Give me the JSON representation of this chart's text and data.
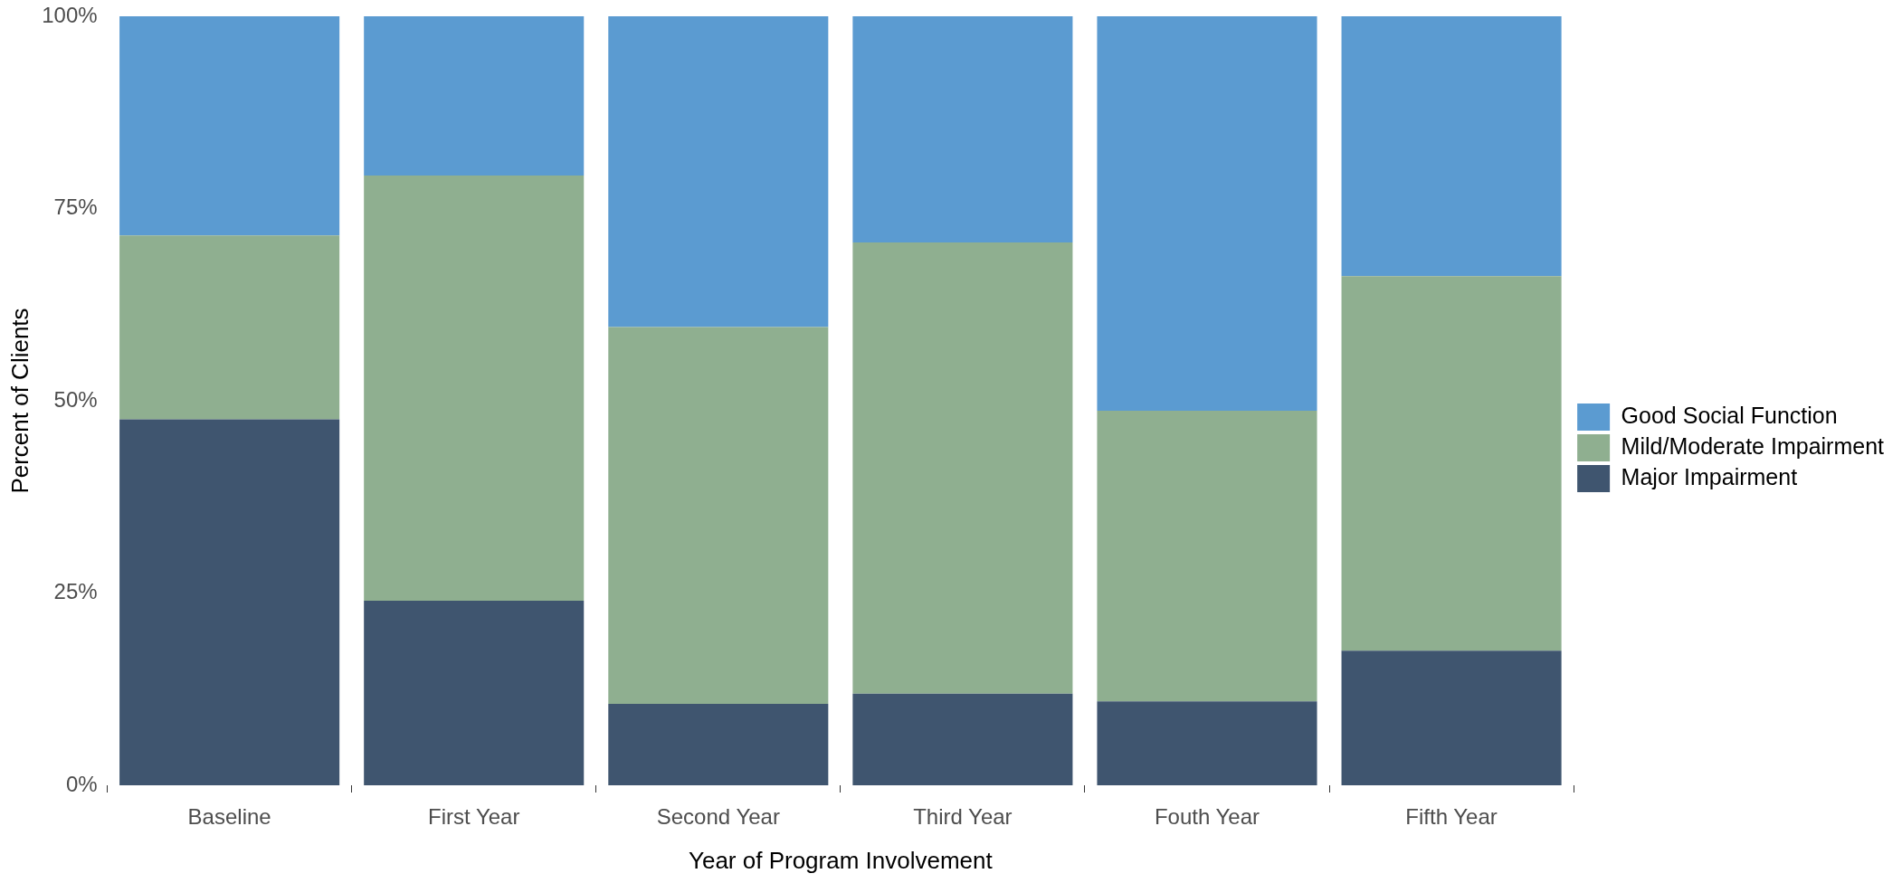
{
  "chart_data": {
    "type": "bar",
    "stacked": true,
    "xlabel": "Year of Program Involvement",
    "ylabel": "Percent of Clients",
    "categories": [
      "Baseline",
      "First Year",
      "Second Year",
      "Third Year",
      "Fouth Year",
      "Fifth Year"
    ],
    "series": [
      {
        "name": "Major Impairment",
        "color": "#3f556f",
        "values": [
          47.6,
          24.0,
          10.6,
          11.9,
          10.9,
          17.5
        ]
      },
      {
        "name": "Mild/Moderate Impairment",
        "color": "#8faf90",
        "values": [
          23.9,
          55.3,
          49.0,
          58.7,
          37.8,
          48.7
        ]
      },
      {
        "name": "Good Social Function",
        "color": "#5b9bd1",
        "values": [
          28.5,
          20.7,
          40.4,
          29.4,
          51.3,
          33.8
        ]
      }
    ],
    "ylim": [
      0,
      100
    ],
    "yticks": [
      {
        "value": 0,
        "label": "0%"
      },
      {
        "value": 25,
        "label": "25%"
      },
      {
        "value": 50,
        "label": "50%"
      },
      {
        "value": 75,
        "label": "75%"
      },
      {
        "value": 100,
        "label": "100%"
      }
    ],
    "grid": false,
    "legend": "right"
  }
}
